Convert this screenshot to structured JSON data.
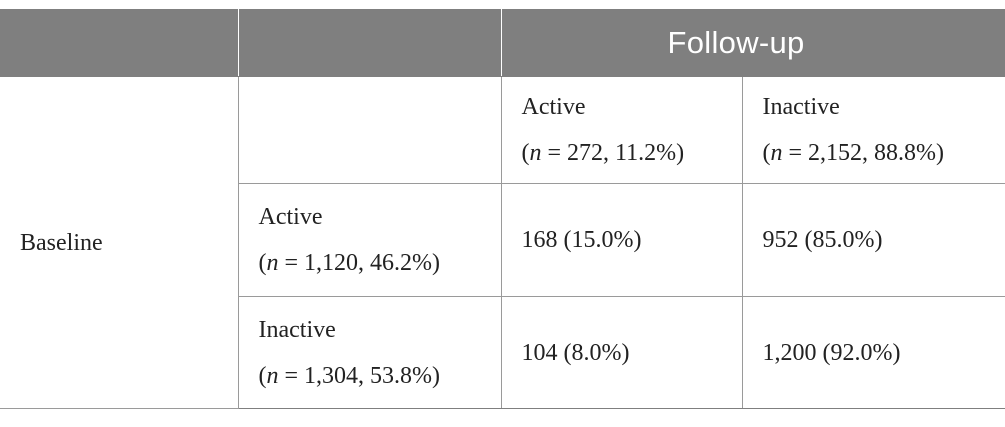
{
  "header": {
    "followup_label": "Follow-up"
  },
  "row_header": {
    "baseline_label": "Baseline"
  },
  "columns": {
    "active": {
      "label": "Active",
      "n_var": "n",
      "n_rest": " = 272, 11.2%"
    },
    "inactive": {
      "label": "Inactive",
      "n_var": "n",
      "n_rest": " = 2,152, 88.8%"
    }
  },
  "rows": {
    "active": {
      "label": "Active",
      "n_var": "n",
      "n_rest": " = 1,120, 46.2%",
      "to_active": "168 (15.0%)",
      "to_inactive": "952 (85.0%)"
    },
    "inactive": {
      "label": "Inactive",
      "n_var": "n",
      "n_rest": " = 1,304, 53.8%",
      "to_active": "104 (8.0%)",
      "to_inactive": "1,200 (92.0%)"
    }
  }
}
